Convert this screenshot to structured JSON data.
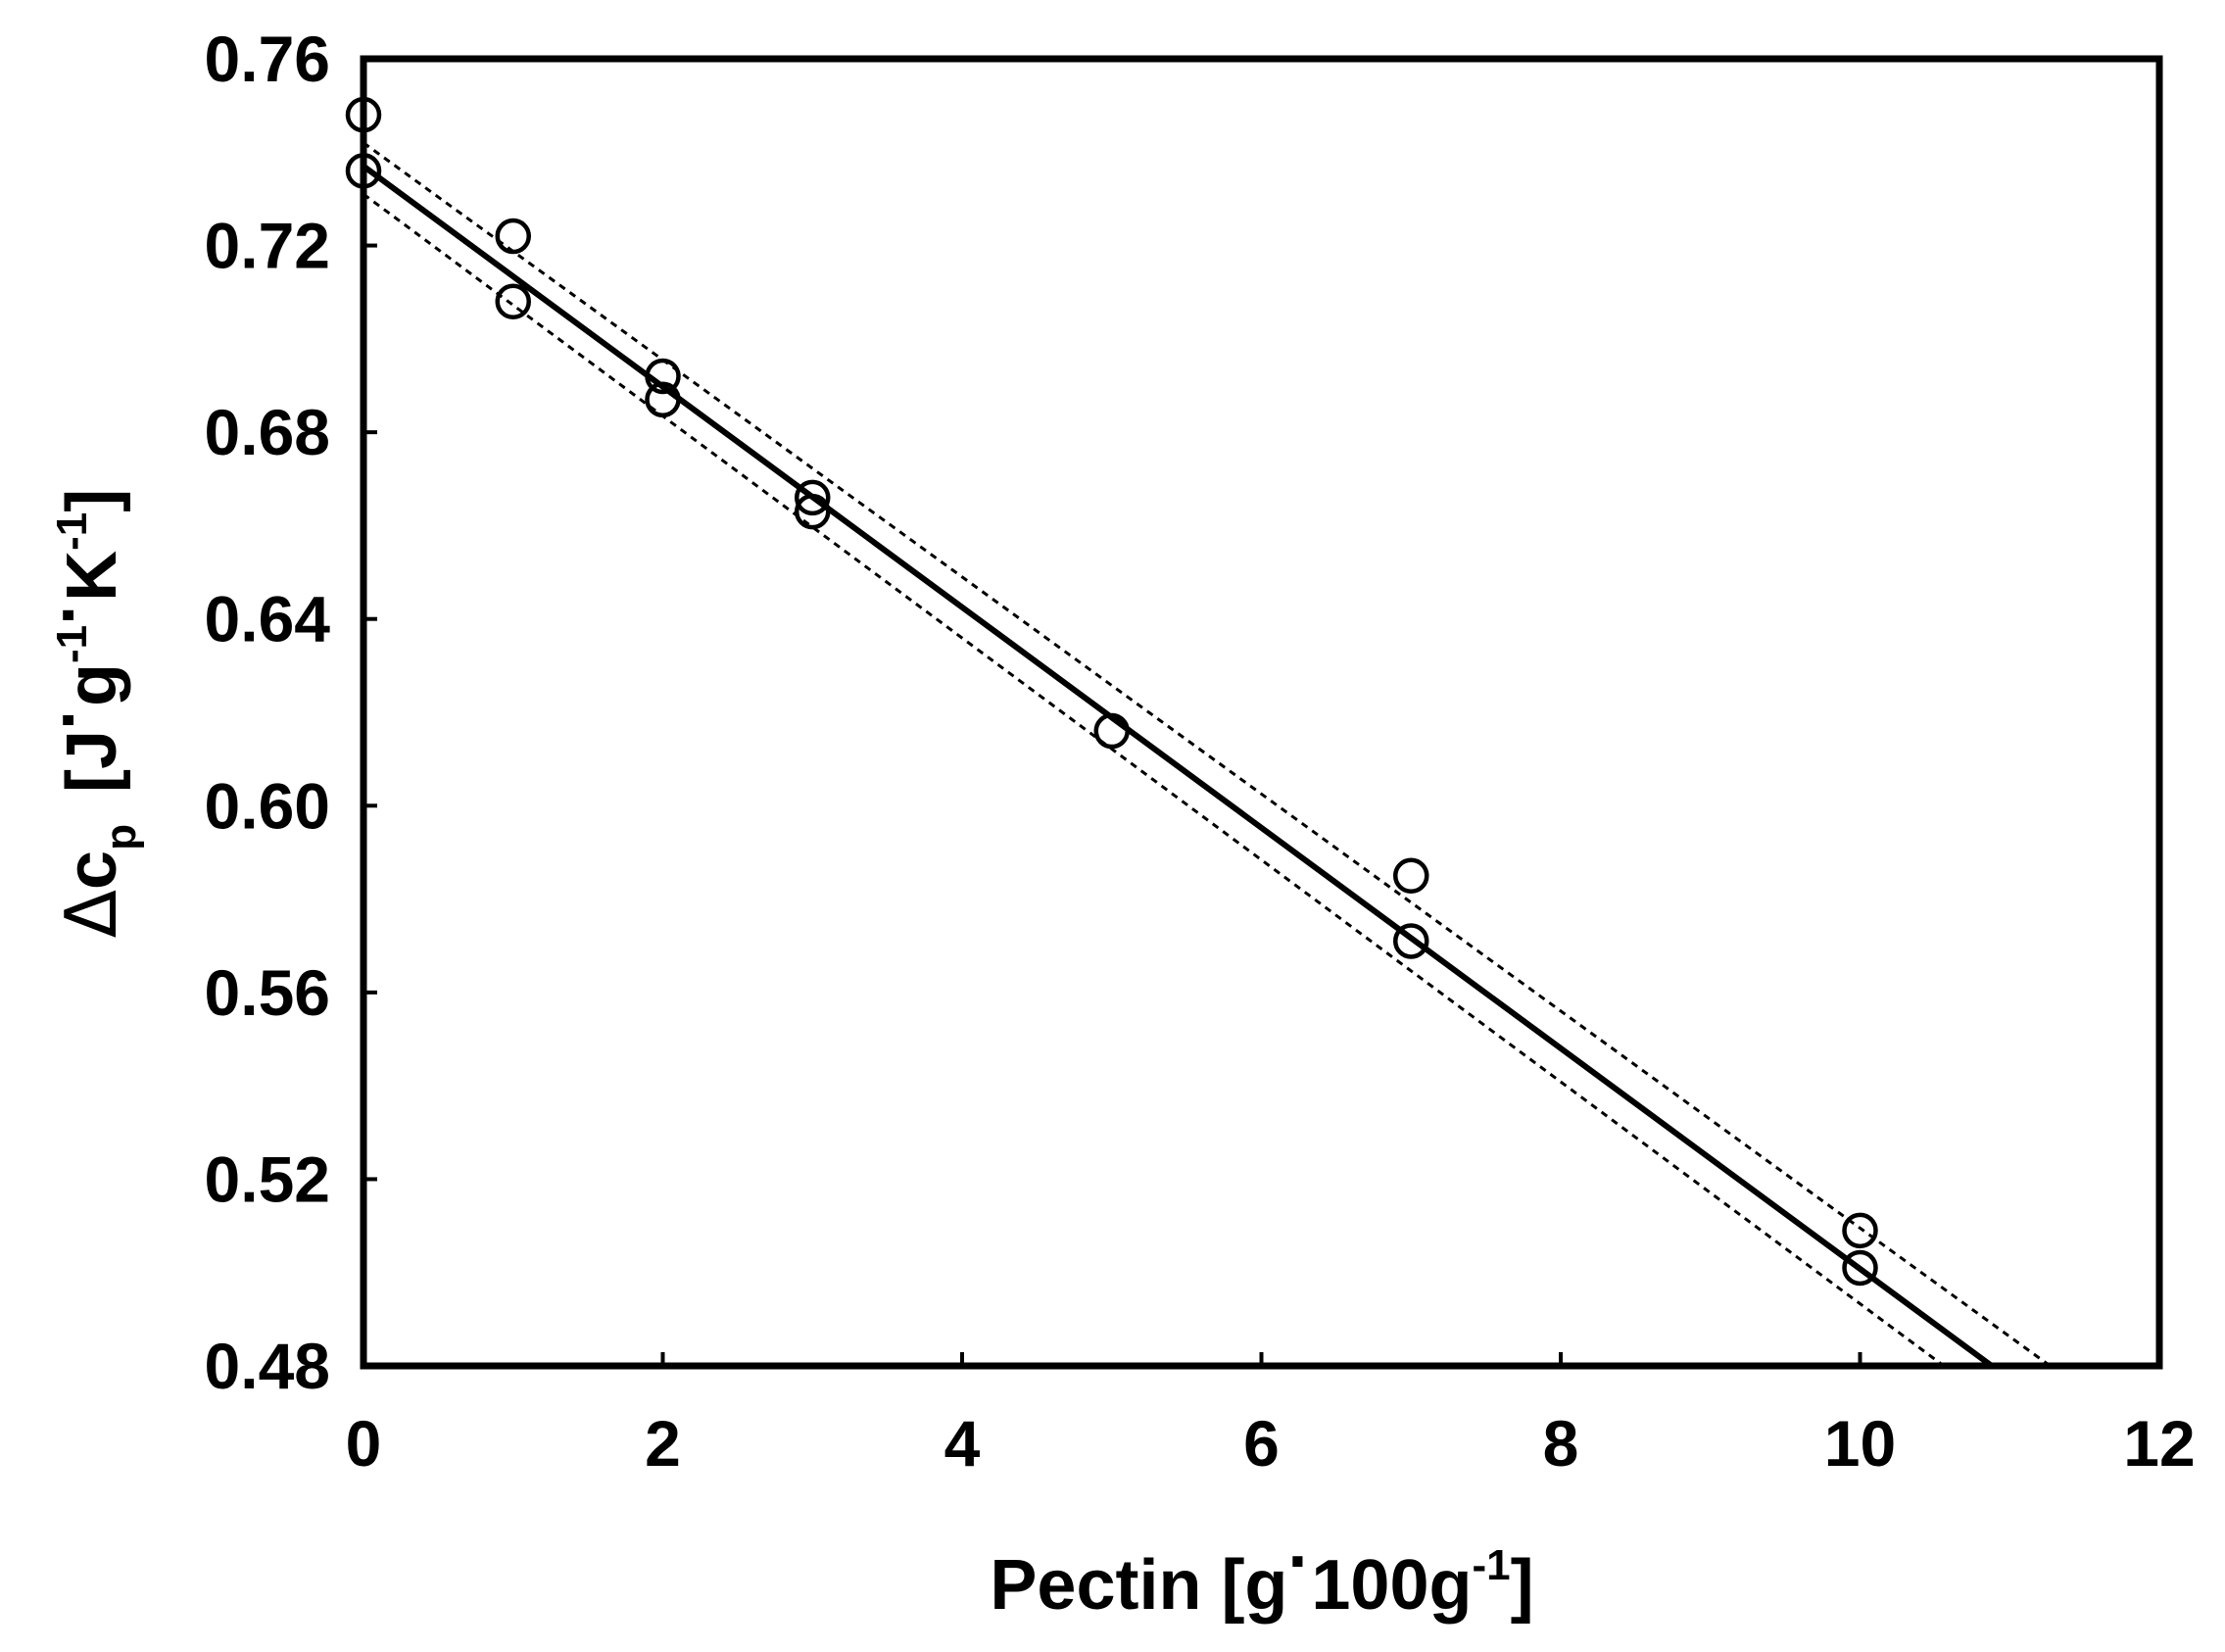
{
  "chart_data": {
    "type": "scatter",
    "xlabel": {
      "main": "Pectin [g",
      "dot": "·",
      "unit": "100g",
      "sup": "-1",
      "close": "]"
    },
    "ylabel": {
      "delta": "Δ",
      "c": "c",
      "sub": "p",
      "open": "[J",
      "dot1": "·",
      "g": "g",
      "sup1": "-1",
      "dot2": "·",
      "k": "K",
      "sup2": "-1",
      "close": "]"
    },
    "xlim": [
      0,
      12
    ],
    "ylim": [
      0.48,
      0.76
    ],
    "x_ticks": [
      0,
      2,
      4,
      6,
      8,
      10,
      12
    ],
    "x_tick_labels": [
      "0",
      "2",
      "4",
      "6",
      "8",
      "10",
      "12"
    ],
    "y_ticks": [
      0.48,
      0.52,
      0.56,
      0.6,
      0.64,
      0.68,
      0.72,
      0.76
    ],
    "y_tick_labels": [
      "0.48",
      "0.52",
      "0.56",
      "0.60",
      "0.64",
      "0.68",
      "0.72",
      "0.76"
    ],
    "grid": false,
    "points": [
      {
        "x": 0,
        "y": 0.748
      },
      {
        "x": 0,
        "y": 0.736
      },
      {
        "x": 1,
        "y": 0.722
      },
      {
        "x": 1,
        "y": 0.708
      },
      {
        "x": 2,
        "y": 0.692
      },
      {
        "x": 2,
        "y": 0.687
      },
      {
        "x": 3,
        "y": 0.666
      },
      {
        "x": 3,
        "y": 0.663
      },
      {
        "x": 5,
        "y": 0.616
      },
      {
        "x": 7,
        "y": 0.585
      },
      {
        "x": 7,
        "y": 0.571
      },
      {
        "x": 10,
        "y": 0.509
      },
      {
        "x": 10,
        "y": 0.501
      }
    ],
    "fit_line": {
      "x": [
        0,
        10.88
      ],
      "y": [
        0.737,
        0.48
      ],
      "style": "solid"
    },
    "confidence_bands": [
      {
        "x": [
          0,
          11.27
        ],
        "y": [
          0.742,
          0.48
        ],
        "style": "dotted"
      },
      {
        "x": [
          0,
          10.56
        ],
        "y": [
          0.731,
          0.48
        ],
        "style": "dotted"
      }
    ]
  }
}
